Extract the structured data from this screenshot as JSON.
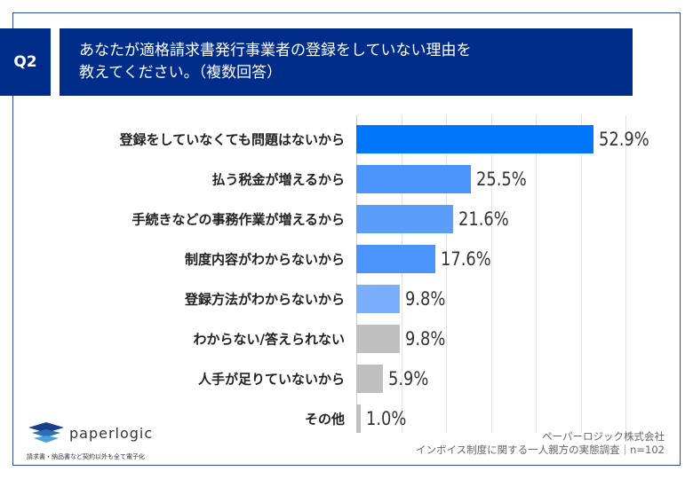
{
  "header": {
    "q": "Q2",
    "title_line1": "あなたが適格請求書発行事業者の登録をしていない理由を",
    "title_line2": "教えてください。（複数回答）"
  },
  "chart_data": {
    "type": "bar",
    "orientation": "horizontal",
    "xlim": [
      0,
      60
    ],
    "grid": true,
    "categories": [
      "登録をしていなくても問題はないから",
      "払う税金が増えるから",
      "手続きなどの事務作業が増えるから",
      "制度内容がわからないから",
      "登録方法がわからないから",
      "わからない/答えられない",
      "人手が足りていないから",
      "その他"
    ],
    "values": [
      52.9,
      25.5,
      21.6,
      17.6,
      9.8,
      9.8,
      5.9,
      1.0
    ],
    "value_labels": [
      "52.9%",
      "25.5%",
      "21.6%",
      "17.6%",
      "9.8%",
      "9.8%",
      "5.9%",
      "1.0%"
    ],
    "colors": [
      "#0077fa",
      "#4a94fb",
      "#5a9dfb",
      "#4a94fb",
      "#7aaefc",
      "#bfbfbf",
      "#bfbfbf",
      "#bfbfbf"
    ]
  },
  "source": {
    "company": "ペーパーロジック株式会社",
    "survey": "インボイス制度に関する一人親方の実態調査｜n=102"
  },
  "logo": {
    "name": "paperlogic",
    "tagline": "請求書・納品書など契約以外も全て電子化"
  }
}
